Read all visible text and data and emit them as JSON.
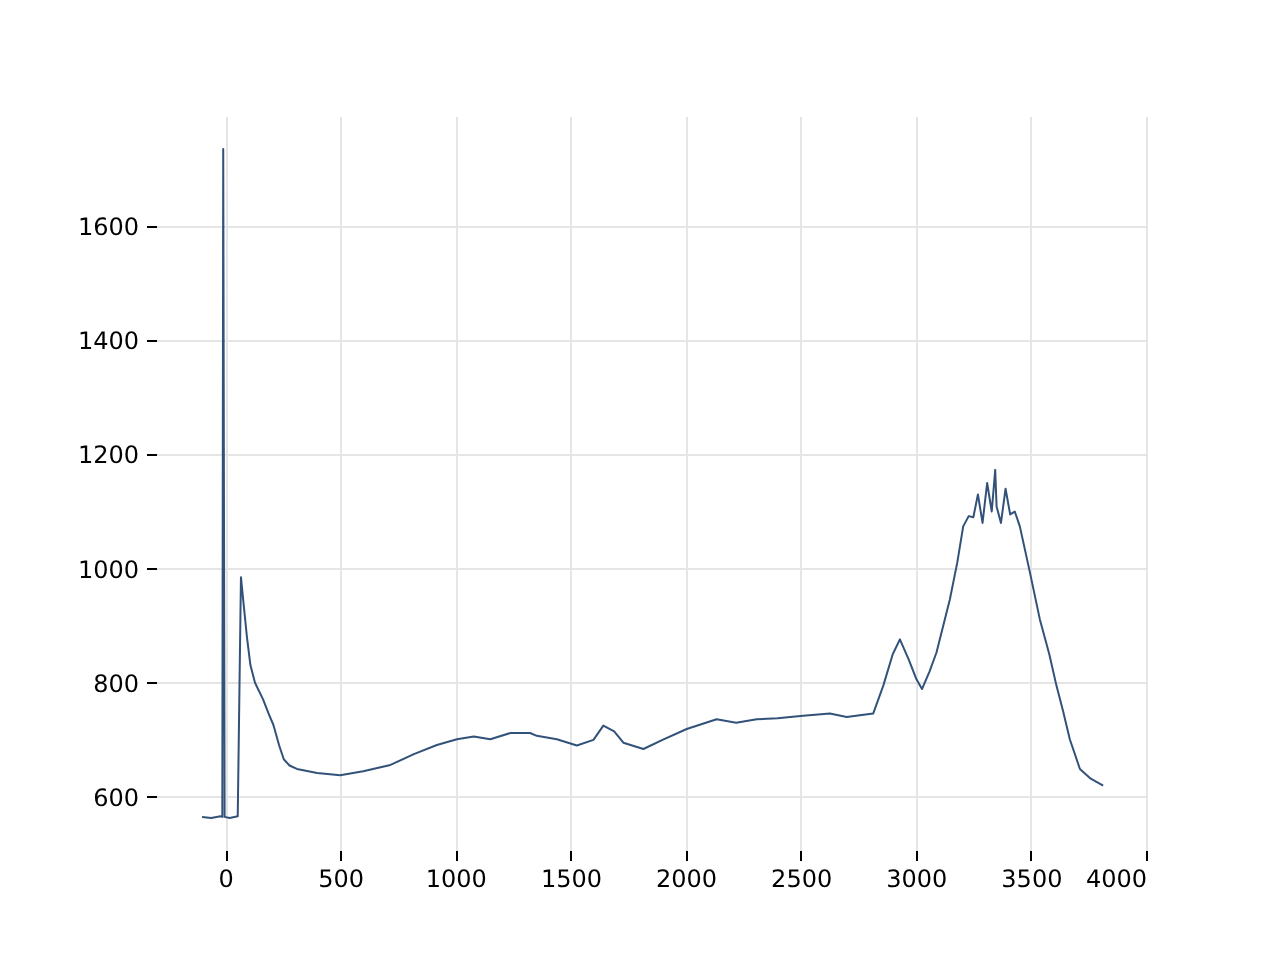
{
  "chart_data": {
    "type": "line",
    "x": [
      -100,
      -60,
      -20,
      -12,
      -8,
      -2,
      20,
      55,
      69,
      80,
      95,
      110,
      130,
      165,
      190,
      210,
      235,
      255,
      280,
      312,
      400,
      500,
      600,
      718,
      820,
      920,
      1007,
      1080,
      1152,
      1240,
      1325,
      1354,
      1441,
      1528,
      1600,
      1643,
      1690,
      1730,
      1817,
      1900,
      2005,
      2135,
      2220,
      2309,
      2400,
      2511,
      2627,
      2700,
      2815,
      2859,
      2900,
      2931,
      2970,
      3003,
      3027,
      3060,
      3090,
      3148,
      3180,
      3206,
      3230,
      3250,
      3270,
      3290,
      3310,
      3330,
      3345,
      3351,
      3370,
      3390,
      3410,
      3430,
      3452,
      3496,
      3539,
      3580,
      3611,
      3640,
      3669,
      3713,
      3760,
      3814
    ],
    "series": [
      {
        "color": "#32527a",
        "values": [
          565,
          563,
          566,
          565,
          1735,
          565,
          563,
          566,
          985,
          940,
          880,
          831,
          800,
          771,
          745,
          726,
          690,
          666,
          655,
          649,
          642,
          638,
          645,
          656,
          675,
          691,
          701,
          706,
          701,
          712,
          712,
          707,
          701,
          690,
          700,
          725,
          715,
          695,
          684,
          700,
          719,
          736,
          730,
          736,
          738,
          742,
          746,
          740,
          746,
          795,
          850,
          876,
          840,
          806,
          789,
          820,
          853,
          946,
          1010,
          1074,
          1092,
          1090,
          1130,
          1080,
          1150,
          1100,
          1173,
          1109,
          1080,
          1140,
          1095,
          1100,
          1074,
          993,
          911,
          850,
          795,
          750,
          701,
          649,
          632,
          620
        ]
      }
    ],
    "xlim": [
      -300,
      4000
    ],
    "ylim": [
      507,
      1793
    ],
    "xticks": [
      0,
      500,
      1000,
      1500,
      2000,
      2500,
      3000,
      3500,
      4000
    ],
    "yticks": [
      600,
      800,
      1000,
      1200,
      1400,
      1600
    ],
    "grid": true,
    "line_style": "solid"
  }
}
